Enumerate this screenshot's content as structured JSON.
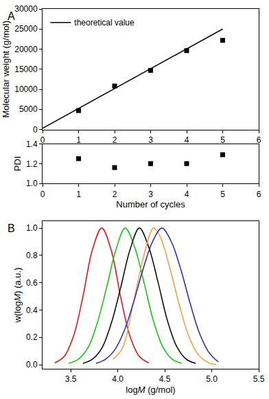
{
  "chart_data": [
    {
      "type": "line",
      "title": "A",
      "y_label": "Molecular weight (g/mol)",
      "xlim": [
        0,
        6
      ],
      "xticks": [
        0,
        1,
        2,
        3,
        4,
        5,
        6
      ],
      "ylim": [
        0,
        30000
      ],
      "yticks": [
        0,
        5000,
        10000,
        15000,
        20000,
        25000,
        30000
      ],
      "legend": "top-left",
      "series": [
        {
          "name": "theoretical value",
          "type": "line",
          "color": "#000000",
          "line_style": "solid",
          "x": [
            0,
            5
          ],
          "values": [
            300,
            25000
          ]
        },
        {
          "type": "scatter",
          "marker": "square",
          "color": "#000000",
          "x": [
            1,
            2,
            3,
            4,
            5
          ],
          "values": [
            4700,
            10800,
            14700,
            19600,
            22200
          ]
        }
      ]
    },
    {
      "type": "scatter",
      "y_label": "PDI",
      "x_label": "Number of cycles",
      "xlim": [
        0,
        6
      ],
      "xticks": [
        0,
        1,
        2,
        3,
        4,
        5,
        6
      ],
      "ylim": [
        1.0,
        1.4
      ],
      "yticks": [
        {
          "value": 1.0,
          "label": "1.0"
        },
        {
          "value": 1.2,
          "label": "1.2"
        },
        {
          "value": 1.4,
          "label": "1.4"
        }
      ],
      "series": [
        {
          "type": "scatter",
          "marker": "square",
          "color": "#000000",
          "x": [
            1,
            2,
            3,
            4,
            5
          ],
          "values": [
            1.25,
            1.16,
            1.2,
            1.2,
            1.29
          ]
        }
      ]
    },
    {
      "type": "line",
      "title": "B",
      "x_label": "logM (g/mol)",
      "y_label": "w(logM) (a.u.)",
      "xlim": [
        3.2,
        5.5
      ],
      "xticks": [
        {
          "value": 3.5,
          "label": "3.5"
        },
        {
          "value": 4.0,
          "label": "4.0"
        },
        {
          "value": 4.5,
          "label": "4.5"
        },
        {
          "value": 5.0,
          "label": "5.0"
        },
        {
          "value": 5.5,
          "label": "5.5"
        }
      ],
      "ylim": [
        -0.03,
        1.05
      ],
      "yticks": [
        {
          "value": 0.0,
          "label": "0.0"
        },
        {
          "value": 0.2,
          "label": "0.2"
        },
        {
          "value": 0.4,
          "label": "0.4"
        },
        {
          "value": 0.6,
          "label": "0.6"
        },
        {
          "value": 0.8,
          "label": "0.8"
        },
        {
          "value": 1.0,
          "label": "1.0"
        }
      ],
      "series": [
        {
          "color": "#ff0000",
          "x": [
            3.33,
            3.43,
            3.53,
            3.63,
            3.73,
            3.83,
            3.93,
            4.03,
            4.13,
            4.23,
            4.33
          ],
          "values": [
            0.013,
            0.06,
            0.21,
            0.5,
            0.84,
            1.0,
            0.84,
            0.5,
            0.21,
            0.06,
            0.013
          ]
        },
        {
          "color": "#00cc00",
          "x": [
            3.48,
            3.58,
            3.68,
            3.78,
            3.88,
            3.98,
            4.08,
            4.18,
            4.28,
            4.38,
            4.48,
            4.58,
            4.68
          ],
          "values": [
            0.01,
            0.04,
            0.12,
            0.3,
            0.56,
            0.84,
            1.0,
            0.86,
            0.6,
            0.32,
            0.13,
            0.04,
            0.01
          ]
        },
        {
          "color": "#000000",
          "x": [
            3.63,
            3.73,
            3.83,
            3.93,
            4.03,
            4.13,
            4.23,
            4.33,
            4.43,
            4.53,
            4.63,
            4.73,
            4.83
          ],
          "values": [
            0.01,
            0.04,
            0.12,
            0.3,
            0.56,
            0.84,
            1.0,
            0.86,
            0.6,
            0.32,
            0.13,
            0.04,
            0.01
          ]
        },
        {
          "color": "#ff9933",
          "x": [
            3.95,
            4.05,
            4.15,
            4.25,
            4.35,
            4.38,
            4.45,
            4.55,
            4.65,
            4.75,
            4.85,
            4.95,
            5.05
          ],
          "values": [
            0.04,
            0.12,
            0.4,
            0.72,
            0.97,
            1.0,
            0.94,
            0.72,
            0.45,
            0.22,
            0.08,
            0.02,
            0.0
          ]
        },
        {
          "color": "#2222cc",
          "x": [
            3.77,
            3.87,
            3.97,
            4.07,
            4.17,
            4.27,
            4.37,
            4.47,
            4.57,
            4.67,
            4.77,
            4.87,
            4.97,
            5.07
          ],
          "values": [
            0.01,
            0.04,
            0.11,
            0.25,
            0.46,
            0.7,
            0.9,
            1.0,
            0.9,
            0.7,
            0.45,
            0.23,
            0.09,
            0.02
          ]
        }
      ]
    }
  ]
}
